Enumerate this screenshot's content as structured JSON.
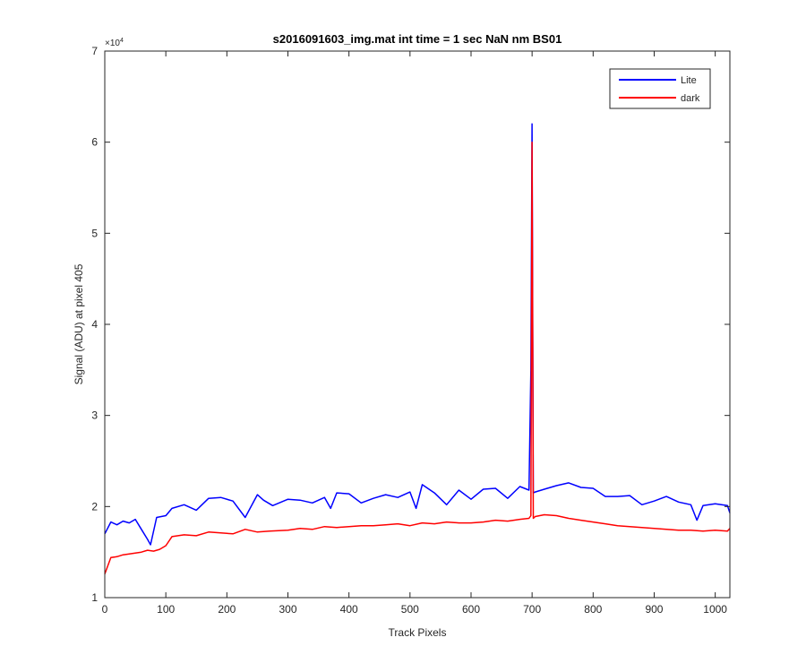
{
  "chart_data": {
    "type": "line",
    "title": "s2016091603_img.mat int time = 1 sec  NaN nm BS01",
    "xlabel": "Track Pixels",
    "ylabel": "Signal (ADU) at pixel 405",
    "y_exponent_label": "×10",
    "y_exponent_power": "4",
    "xlim": [
      0,
      1024
    ],
    "ylim": [
      10000,
      70000
    ],
    "xticks": [
      0,
      100,
      200,
      300,
      400,
      500,
      600,
      700,
      800,
      900,
      1000
    ],
    "xtick_labels": [
      "0",
      "100",
      "200",
      "300",
      "400",
      "500",
      "600",
      "700",
      "800",
      "900",
      "1000"
    ],
    "yticks": [
      10000,
      20000,
      30000,
      40000,
      50000,
      60000,
      70000
    ],
    "ytick_labels": [
      "1",
      "2",
      "3",
      "4",
      "5",
      "6",
      "7"
    ],
    "grid": false,
    "legend_position": "top-right",
    "series": [
      {
        "name": "Lite",
        "color": "#0000ff",
        "x": [
          0,
          10,
          20,
          30,
          40,
          50,
          60,
          70,
          75,
          85,
          100,
          110,
          130,
          150,
          170,
          190,
          210,
          230,
          250,
          260,
          275,
          300,
          320,
          340,
          360,
          370,
          380,
          400,
          420,
          440,
          460,
          480,
          500,
          510,
          520,
          540,
          560,
          580,
          600,
          620,
          640,
          660,
          680,
          695,
          698,
          700,
          702,
          705,
          720,
          740,
          760,
          780,
          800,
          820,
          840,
          860,
          880,
          900,
          920,
          940,
          960,
          970,
          980,
          1000,
          1020,
          1024
        ],
        "y": [
          17000,
          18300,
          18000,
          18400,
          18200,
          18600,
          17500,
          16400,
          15800,
          18800,
          19000,
          19800,
          20200,
          19600,
          20900,
          21000,
          20600,
          18800,
          21300,
          20700,
          20100,
          20800,
          20700,
          20400,
          21000,
          19800,
          21500,
          21400,
          20400,
          20900,
          21300,
          21000,
          21600,
          19800,
          22400,
          21500,
          20200,
          21800,
          20800,
          21900,
          22000,
          20900,
          22200,
          21800,
          35000,
          62000,
          21500,
          21600,
          21900,
          22300,
          22600,
          22100,
          22000,
          21100,
          21100,
          21200,
          20200,
          20600,
          21100,
          20500,
          20200,
          18500,
          20100,
          20300,
          20100,
          19300
        ]
      },
      {
        "name": "dark",
        "color": "#ff0000",
        "x": [
          0,
          10,
          20,
          30,
          40,
          50,
          60,
          70,
          80,
          90,
          100,
          110,
          130,
          150,
          170,
          190,
          210,
          230,
          250,
          270,
          300,
          320,
          340,
          360,
          380,
          400,
          420,
          440,
          460,
          480,
          500,
          520,
          540,
          560,
          580,
          600,
          620,
          640,
          660,
          680,
          695,
          698,
          700,
          702,
          705,
          720,
          740,
          760,
          780,
          800,
          820,
          840,
          860,
          880,
          900,
          920,
          940,
          960,
          980,
          1000,
          1020,
          1024
        ],
        "y": [
          12600,
          14400,
          14500,
          14700,
          14800,
          14900,
          15000,
          15200,
          15100,
          15300,
          15700,
          16700,
          16900,
          16800,
          17200,
          17100,
          17000,
          17500,
          17200,
          17300,
          17400,
          17600,
          17500,
          17800,
          17700,
          17800,
          17900,
          17900,
          18000,
          18100,
          17900,
          18200,
          18100,
          18300,
          18200,
          18200,
          18300,
          18500,
          18400,
          18600,
          18700,
          19000,
          60000,
          18700,
          18900,
          19100,
          19000,
          18700,
          18500,
          18300,
          18100,
          17900,
          17800,
          17700,
          17600,
          17500,
          17400,
          17400,
          17300,
          17400,
          17300,
          17600
        ]
      }
    ]
  }
}
